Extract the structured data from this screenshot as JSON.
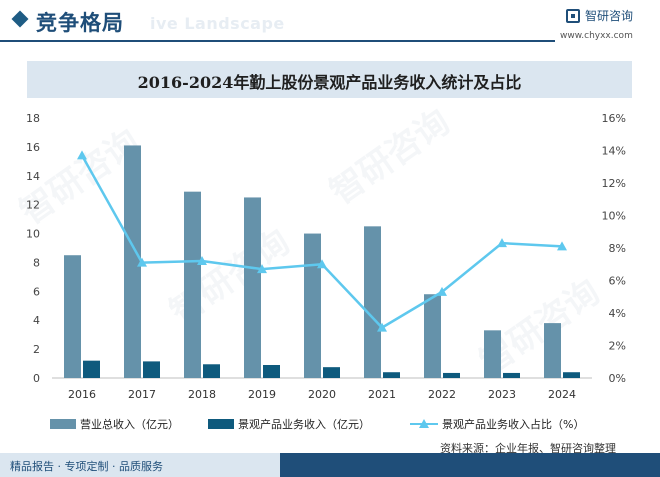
{
  "header": {
    "title": "竞争格局",
    "ghost_text": "ive Landscape",
    "brand_name": "智研咨询",
    "brand_url": "www.chyxx.com"
  },
  "watermark_text": "智研咨询",
  "chart_data": {
    "type": "bar",
    "title": "2016-2024年勤上股份景观产品业务收入统计及占比",
    "categories": [
      "2016",
      "2017",
      "2018",
      "2019",
      "2020",
      "2021",
      "2022",
      "2023",
      "2024"
    ],
    "series": [
      {
        "name": "营业总收入（亿元）",
        "type": "bar",
        "axis": "left",
        "color": "#6592aa",
        "values": [
          8.5,
          16.1,
          12.9,
          12.5,
          10.0,
          10.5,
          5.8,
          3.3,
          3.8
        ]
      },
      {
        "name": "景观产品业务收入（亿元）",
        "type": "bar",
        "axis": "left",
        "color": "#0e5a7d",
        "values": [
          1.2,
          1.15,
          0.95,
          0.9,
          0.75,
          0.4,
          0.35,
          0.35,
          0.4
        ]
      },
      {
        "name": "景观产品业务收入占比（%）",
        "type": "line",
        "axis": "right",
        "color": "#5ec8ee",
        "values": [
          13.7,
          7.1,
          7.2,
          6.7,
          7.0,
          3.1,
          5.3,
          8.3,
          8.1
        ]
      }
    ],
    "ylim": [
      0,
      18
    ],
    "yticks": [
      0,
      2,
      4,
      6,
      8,
      10,
      12,
      14,
      16,
      18
    ],
    "y2lim": [
      0,
      16
    ],
    "y2ticks": [
      "0%",
      "2%",
      "4%",
      "6%",
      "8%",
      "10%",
      "12%",
      "14%",
      "16%"
    ],
    "legend_position": "bottom",
    "grid": false
  },
  "source": "资料来源：企业年报、智研咨询整理",
  "footer": {
    "text": "精品报告 · 专项定制 · 品质服务"
  }
}
